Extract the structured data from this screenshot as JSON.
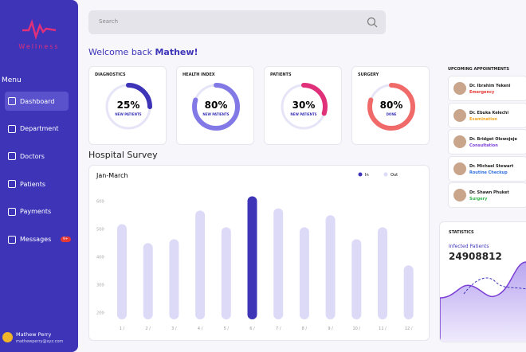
{
  "sidebar": {
    "logo": "Wellness",
    "menu_title": "Menu",
    "items": [
      "Dashboard",
      "Department",
      "Doctors",
      "Patients",
      "Payments",
      "Messages"
    ],
    "badge": "9+",
    "user": {
      "name": "Mathew Perry",
      "email": "mathewperry@xyz.com"
    }
  },
  "header": {
    "search": "Search",
    "welcome": "Welcome back",
    "user": "Mathew!"
  },
  "cards": [
    {
      "title": "DIAGNOSTICS",
      "value": 25,
      "value_label": "25%",
      "caption": "NEW PATIENTS",
      "color": "#3d34b8"
    },
    {
      "title": "HEALTH INDEX",
      "value": 80,
      "value_label": "80%",
      "caption": "NEW PATIENTS",
      "color": "#8279e6"
    },
    {
      "title": "PATIENTS",
      "value": 30,
      "value_label": "30%",
      "caption": "NEW PATIENTS",
      "color": "#e0307a"
    },
    {
      "title": "SURGERY",
      "value": 80,
      "value_label": "80%",
      "caption": "DONE",
      "color": "#f06a6a"
    }
  ],
  "survey": {
    "title": "Hospital Survey",
    "chart_data": {
      "type": "bar",
      "title": "Jan-March",
      "categories": [
        "1 /",
        "2 /",
        "3 /",
        "4 /",
        "5 /",
        "6 /",
        "7 /",
        "8 /",
        "9 /",
        "10 /",
        "11 /",
        "12 /"
      ],
      "series": [
        {
          "name": "In",
          "color": "#3d34b8"
        },
        {
          "name": "Out",
          "color": "#dcdaf7"
        }
      ],
      "values": [
        517,
        449,
        463,
        566,
        506,
        617,
        574,
        506,
        549,
        463,
        506,
        369
      ],
      "colors": [
        "#dcdaf7",
        "#dcdaf7",
        "#dcdaf7",
        "#dcdaf7",
        "#dcdaf7",
        "#3d34b8",
        "#dcdaf7",
        "#dcdaf7",
        "#dcdaf7",
        "#dcdaf7",
        "#dcdaf7",
        "#dcdaf7"
      ],
      "ylim": [
        175,
        630
      ],
      "yticks": [
        200,
        300,
        400,
        500,
        600
      ]
    }
  },
  "appointments": {
    "title": "UPCOMING APPOINTMENTS",
    "items": [
      {
        "name": "Dr. Ibrahim Yekeni",
        "type": "Emergency",
        "color": "#e53935"
      },
      {
        "name": "Dr. Ebuka Kelechi",
        "type": "Examination",
        "color": "#f5a623"
      },
      {
        "name": "Dr. Bridget Olowojeje",
        "type": "Consultation",
        "color": "#7b3fd6"
      },
      {
        "name": "Dr. Michael Stewart",
        "type": "Routine Checkup",
        "color": "#2f6fe0"
      },
      {
        "name": "Dr. Shawn Phuket",
        "type": "Surgery",
        "color": "#2fb34a"
      }
    ]
  },
  "statistics": {
    "title": "STATISTICS",
    "label": "Infected Patients",
    "value": "24908812"
  }
}
